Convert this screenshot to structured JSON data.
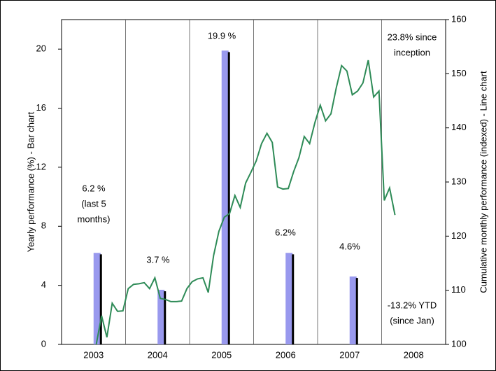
{
  "chart_data": {
    "type": "bar",
    "categories": [
      "2003",
      "2004",
      "2005",
      "2006",
      "2007",
      "2008"
    ],
    "series": [
      {
        "color": "#9999ee",
        "values": [
          6.2,
          3.7,
          19.9,
          6.2,
          4.6,
          null
        ]
      },
      {
        "color": "#000000",
        "values": [
          6.1,
          3.6,
          19.8,
          6.1,
          4.5,
          null
        ]
      }
    ],
    "line": {
      "axis": "y2",
      "color": "#2e8b57",
      "values": [
        null,
        null,
        null,
        null,
        null,
        null,
        100,
        105.3,
        101.3,
        107.6,
        106.1,
        106.2,
        110.3,
        111.1,
        111.2,
        111.4,
        110.3,
        112.3,
        108.5,
        108.3,
        107.9,
        107.9,
        108.0,
        110.3,
        111.6,
        112.1,
        112.3,
        109.6,
        116.4,
        120.9,
        123.5,
        124.2,
        127.5,
        125.3,
        129.8,
        131.8,
        133.9,
        137.1,
        139.0,
        137.3,
        129.1,
        128.7,
        128.8,
        131.9,
        134.5,
        138.4,
        137.1,
        141.0,
        144.2,
        141.3,
        142.6,
        147.4,
        151.5,
        150.5,
        146.1,
        146.8,
        148.3,
        152.5,
        145.7,
        146.8,
        126.6,
        128.9,
        123.9,
        null,
        null,
        null,
        null,
        null,
        null,
        null,
        null,
        null
      ]
    },
    "ylabel": "Yearly performance (%) - Bar chart",
    "y2label": "Cumulative monthly performance (indexed) - Line chart",
    "ylim": [
      0,
      22
    ],
    "yticks": [
      0,
      4,
      8,
      12,
      16,
      20
    ],
    "y2lim": [
      100,
      160
    ],
    "y2ticks": [
      100,
      110,
      120,
      130,
      140,
      150,
      160
    ],
    "annotations": [
      [
        "6.2 %",
        "(last 5",
        "months)"
      ],
      [
        "3.7 %"
      ],
      [
        "19.9 %"
      ],
      [
        "6.2%"
      ],
      [
        "4.6%"
      ],
      [
        "23.8% since",
        "inception"
      ],
      [
        "-13.2% YTD",
        "(since Jan)"
      ]
    ]
  }
}
